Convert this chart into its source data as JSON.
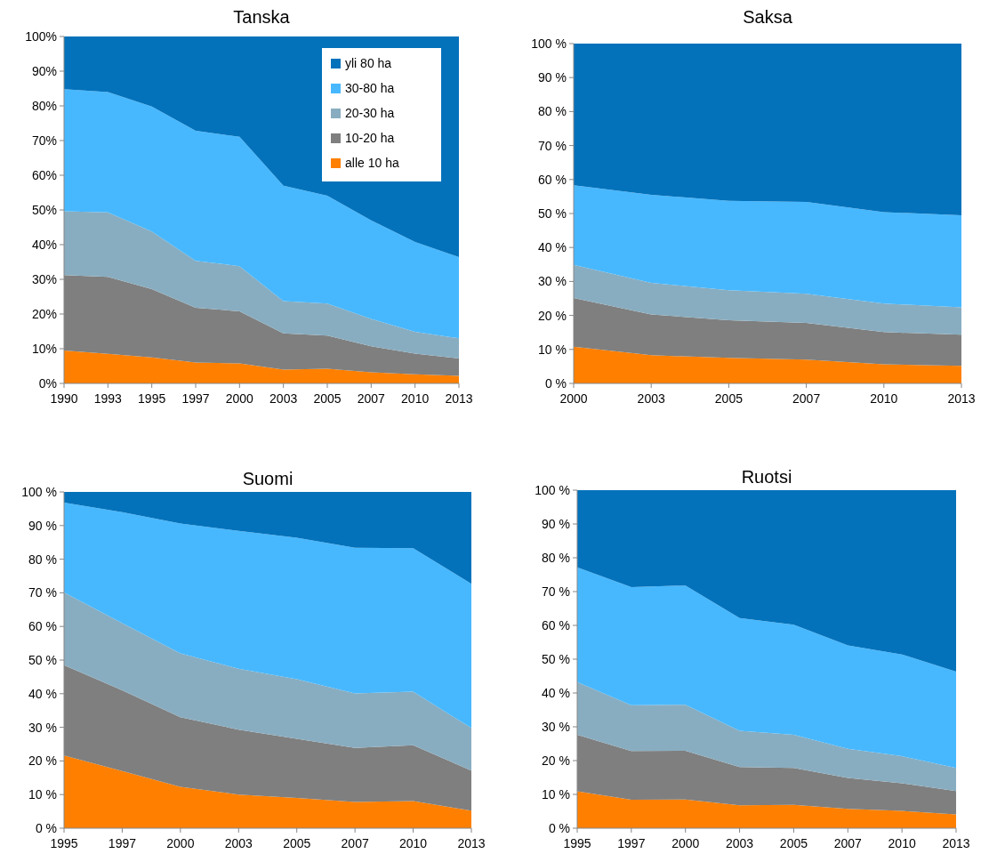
{
  "chart_data": [
    {
      "type": "area",
      "stacked": true,
      "title": "Tanska",
      "categories": [
        "1990",
        "1993",
        "1995",
        "1997",
        "2000",
        "2003",
        "2005",
        "2007",
        "2010",
        "2013"
      ],
      "ylim": [
        0,
        100
      ],
      "yticks": [
        {
          "value": 0,
          "label": "0%"
        },
        {
          "value": 10,
          "label": "10%"
        },
        {
          "value": 20,
          "label": "20%"
        },
        {
          "value": 30,
          "label": "30%"
        },
        {
          "value": 40,
          "label": "40%"
        },
        {
          "value": 50,
          "label": "50%"
        },
        {
          "value": 60,
          "label": "60%"
        },
        {
          "value": 70,
          "label": "70%"
        },
        {
          "value": 80,
          "label": "80%"
        },
        {
          "value": 90,
          "label": "90%"
        },
        {
          "value": 100,
          "label": "100%"
        }
      ],
      "legend": "top right",
      "series": [
        {
          "name": "alle 10 ha",
          "color": "#ff8000",
          "values": [
            9.5,
            8.5,
            7.5,
            6,
            5.8,
            4,
            4.2,
            3.2,
            2.6,
            2.2
          ]
        },
        {
          "name": "10-20 ha",
          "color": "#7f7f7f",
          "values": [
            21.7,
            22.2,
            19.7,
            15.8,
            15,
            10.4,
            9.6,
            7.5,
            6,
            5
          ]
        },
        {
          "name": "20-30 ha",
          "color": "#89adc0",
          "values": [
            18.4,
            18.6,
            16.6,
            13.5,
            13,
            9.3,
            9.2,
            7.9,
            6.3,
            5.8
          ]
        },
        {
          "name": "30-80 ha",
          "color": "#48b8fe",
          "values": [
            35.2,
            34.7,
            36,
            37.5,
            37.3,
            33.3,
            31.1,
            28.4,
            25.9,
            23.4
          ]
        },
        {
          "name": "yli 80 ha",
          "color": "#0372bb",
          "values": [
            15.2,
            16,
            20.2,
            27.2,
            28.9,
            43,
            45.9,
            53,
            59.2,
            63.6
          ]
        }
      ]
    },
    {
      "type": "area",
      "stacked": true,
      "title": "Saksa",
      "categories": [
        "2000",
        "2003",
        "2005",
        "2007",
        "2010",
        "2013"
      ],
      "ylim": [
        0,
        100
      ],
      "yticks": [
        {
          "value": 0,
          "label": "0 %"
        },
        {
          "value": 10,
          "label": "10 %"
        },
        {
          "value": 20,
          "label": "20 %"
        },
        {
          "value": 30,
          "label": "30 %"
        },
        {
          "value": 40,
          "label": "40 %"
        },
        {
          "value": 50,
          "label": "50 %"
        },
        {
          "value": 60,
          "label": "60 %"
        },
        {
          "value": 70,
          "label": "70 %"
        },
        {
          "value": 80,
          "label": "80 %"
        },
        {
          "value": 90,
          "label": "90 %"
        },
        {
          "value": 100,
          "label": "100 %"
        }
      ],
      "series": [
        {
          "color": "#ff8000",
          "values": [
            10.8,
            8.3,
            7.5,
            7,
            5.6,
            5.2
          ]
        },
        {
          "color": "#7f7f7f",
          "values": [
            14.3,
            12,
            11.1,
            10.8,
            9.5,
            9.1
          ]
        },
        {
          "color": "#89adc0",
          "values": [
            9.8,
            9.3,
            8.8,
            8.6,
            8.4,
            8.1
          ]
        },
        {
          "color": "#48b8fe",
          "values": [
            23.4,
            25.9,
            26.3,
            27,
            26.9,
            27.1
          ]
        },
        {
          "color": "#0372bb",
          "values": [
            41.7,
            44.5,
            46.3,
            46.6,
            49.6,
            50.5
          ]
        }
      ]
    },
    {
      "type": "area",
      "stacked": true,
      "title": "Suomi",
      "categories": [
        "1995",
        "1997",
        "2000",
        "2003",
        "2005",
        "2007",
        "2010",
        "2013"
      ],
      "ylim": [
        0,
        100
      ],
      "yticks": [
        {
          "value": 0,
          "label": "0 %"
        },
        {
          "value": 10,
          "label": "10 %"
        },
        {
          "value": 20,
          "label": "20 %"
        },
        {
          "value": 30,
          "label": "30 %"
        },
        {
          "value": 40,
          "label": "40 %"
        },
        {
          "value": 50,
          "label": "50 %"
        },
        {
          "value": 60,
          "label": "60 %"
        },
        {
          "value": 70,
          "label": "70 %"
        },
        {
          "value": 80,
          "label": "80 %"
        },
        {
          "value": 90,
          "label": "90 %"
        },
        {
          "value": 100,
          "label": "100 %"
        }
      ],
      "series": [
        {
          "color": "#ff8000",
          "values": [
            21.6,
            17,
            12.3,
            10,
            9,
            7.8,
            8.1,
            5.2
          ]
        },
        {
          "color": "#7f7f7f",
          "values": [
            26.9,
            24,
            20.7,
            19.3,
            17.6,
            16.1,
            16.6,
            11.9
          ]
        },
        {
          "color": "#89adc0",
          "values": [
            21.6,
            20,
            19,
            18.1,
            17.7,
            16.2,
            15.9,
            12.7
          ]
        },
        {
          "color": "#48b8fe",
          "values": [
            26.7,
            33,
            38.6,
            41,
            42.1,
            43.3,
            42.7,
            42.9
          ]
        },
        {
          "color": "#0372bb",
          "values": [
            3.2,
            6,
            9.4,
            11.6,
            13.6,
            16.6,
            16.7,
            27.3
          ]
        }
      ]
    },
    {
      "type": "area",
      "stacked": true,
      "title": "Ruotsi",
      "categories": [
        "1995",
        "1997",
        "2000",
        "2003",
        "2005",
        "2007",
        "2010",
        "2013"
      ],
      "ylim": [
        0,
        100
      ],
      "yticks": [
        {
          "value": 0,
          "label": "0 %"
        },
        {
          "value": 10,
          "label": "10 %"
        },
        {
          "value": 20,
          "label": "20 %"
        },
        {
          "value": 30,
          "label": "30 %"
        },
        {
          "value": 40,
          "label": "40 %"
        },
        {
          "value": 50,
          "label": "50 %"
        },
        {
          "value": 60,
          "label": "60 %"
        },
        {
          "value": 70,
          "label": "70 %"
        },
        {
          "value": 80,
          "label": "80 %"
        },
        {
          "value": 90,
          "label": "90 %"
        },
        {
          "value": 100,
          "label": "100 %"
        }
      ],
      "series": [
        {
          "color": "#ff8000",
          "values": [
            10.9,
            8.4,
            8.5,
            6.8,
            6.9,
            5.7,
            5.1,
            4.1
          ]
        },
        {
          "color": "#7f7f7f",
          "values": [
            16.7,
            14.4,
            14.4,
            11.3,
            10.9,
            9.2,
            8.2,
            6.9
          ]
        },
        {
          "color": "#89adc0",
          "values": [
            15.6,
            13.6,
            13.6,
            10.7,
            9.8,
            8.6,
            8,
            6.8
          ]
        },
        {
          "color": "#48b8fe",
          "values": [
            34,
            34.9,
            35.3,
            33.4,
            32.6,
            30.6,
            30.1,
            28.5
          ]
        },
        {
          "color": "#0372bb",
          "values": [
            22.8,
            28.7,
            28.2,
            37.8,
            39.8,
            45.9,
            48.6,
            53.7
          ]
        }
      ]
    }
  ]
}
